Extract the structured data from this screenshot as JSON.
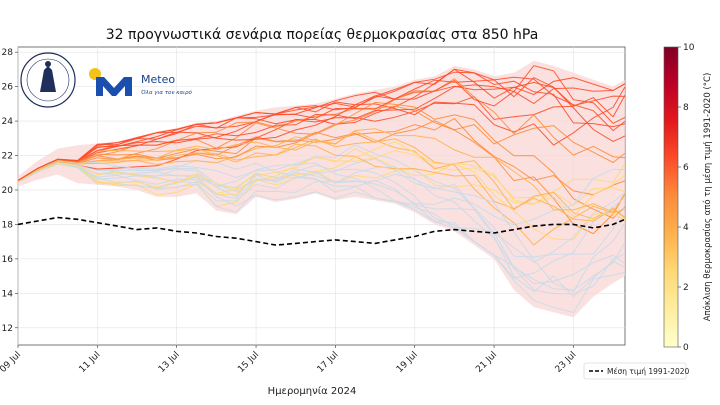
{
  "chart_data": {
    "type": "line",
    "title": "32 προγνωστικά σενάρια πορείας θερμοκρασίας στα 850 hPa",
    "xlabel": "Ημερομηνία 2024",
    "ylabel": "",
    "x_tick_labels": [
      "09 Jul",
      "11 Jul",
      "13 Jul",
      "15 Jul",
      "17 Jul",
      "19 Jul",
      "21 Jul",
      "23 Jul"
    ],
    "x_range_days": [
      0,
      15.3
    ],
    "y_ticks": [
      12,
      14,
      16,
      18,
      20,
      22,
      24,
      26,
      28
    ],
    "ylim": [
      11,
      28.3
    ],
    "grid": true,
    "colorbar": {
      "label": "Απόκλιση θερμοκρασίας από τη μέση τιμή 1991-2020 (°C)",
      "ticks": [
        0,
        2,
        4,
        6,
        8,
        10
      ],
      "range": [
        0,
        10
      ],
      "colors": [
        "#ffffcc",
        "#ffeda0",
        "#fed976",
        "#feb24c",
        "#fd8d3c",
        "#fc4e2a",
        "#e31a1c",
        "#bd0026",
        "#800026"
      ]
    },
    "ensemble": {
      "member_count": 32,
      "band_color": "#f9d6d6",
      "envelope_x": [
        0,
        0.5,
        1,
        1.5,
        2,
        2.5,
        3,
        3.5,
        4,
        4.5,
        5,
        5.5,
        6,
        6.5,
        7,
        7.5,
        8,
        8.5,
        9,
        9.5,
        10,
        10.5,
        11,
        11.5,
        12,
        12.5,
        13,
        13.5,
        14,
        14.5,
        15,
        15.3
      ],
      "upper": [
        20.8,
        21.7,
        22.4,
        22.6,
        22.7,
        22.8,
        23.1,
        23.4,
        23.6,
        23.9,
        24.0,
        24.3,
        24.6,
        24.8,
        24.9,
        25.0,
        25.3,
        25.6,
        25.8,
        26.0,
        26.4,
        26.6,
        27.2,
        27.0,
        26.6,
        26.8,
        27.5,
        27.2,
        26.8,
        26.4,
        26.0,
        26.4
      ],
      "lower": [
        20.2,
        20.6,
        20.9,
        20.4,
        20.3,
        20.2,
        20.0,
        19.6,
        19.6,
        19.8,
        18.8,
        18.6,
        19.6,
        19.3,
        19.5,
        19.8,
        19.4,
        19.6,
        19.4,
        19.2,
        18.7,
        18.0,
        17.6,
        16.8,
        16.0,
        14.2,
        13.2,
        12.9,
        12.6,
        13.8,
        14.6,
        15.0
      ],
      "members_sample_note": ""
    },
    "climatology": {
      "name": "Μέση τιμή 1991-2020",
      "style": "dashed",
      "color": "#000000",
      "x": [
        0,
        0.5,
        1,
        1.5,
        2,
        2.5,
        3,
        3.5,
        4,
        4.5,
        5,
        5.5,
        6,
        6.5,
        7,
        7.5,
        8,
        8.5,
        9,
        9.5,
        10,
        10.5,
        11,
        11.5,
        12,
        12.5,
        13,
        13.5,
        14,
        14.5,
        15,
        15.3
      ],
      "values": [
        18.0,
        18.2,
        18.4,
        18.3,
        18.1,
        17.9,
        17.7,
        17.8,
        17.6,
        17.5,
        17.3,
        17.2,
        17.0,
        16.8,
        16.9,
        17.0,
        17.1,
        17.0,
        16.9,
        17.1,
        17.3,
        17.6,
        17.7,
        17.6,
        17.5,
        17.7,
        17.9,
        18.0,
        18.0,
        17.8,
        18.0,
        18.3
      ]
    }
  },
  "legend": {
    "label": "Μέση τιμή 1991-2020"
  },
  "logo": {
    "brand": "Meteo",
    "tagline": "Όλα για τον καιρό"
  }
}
